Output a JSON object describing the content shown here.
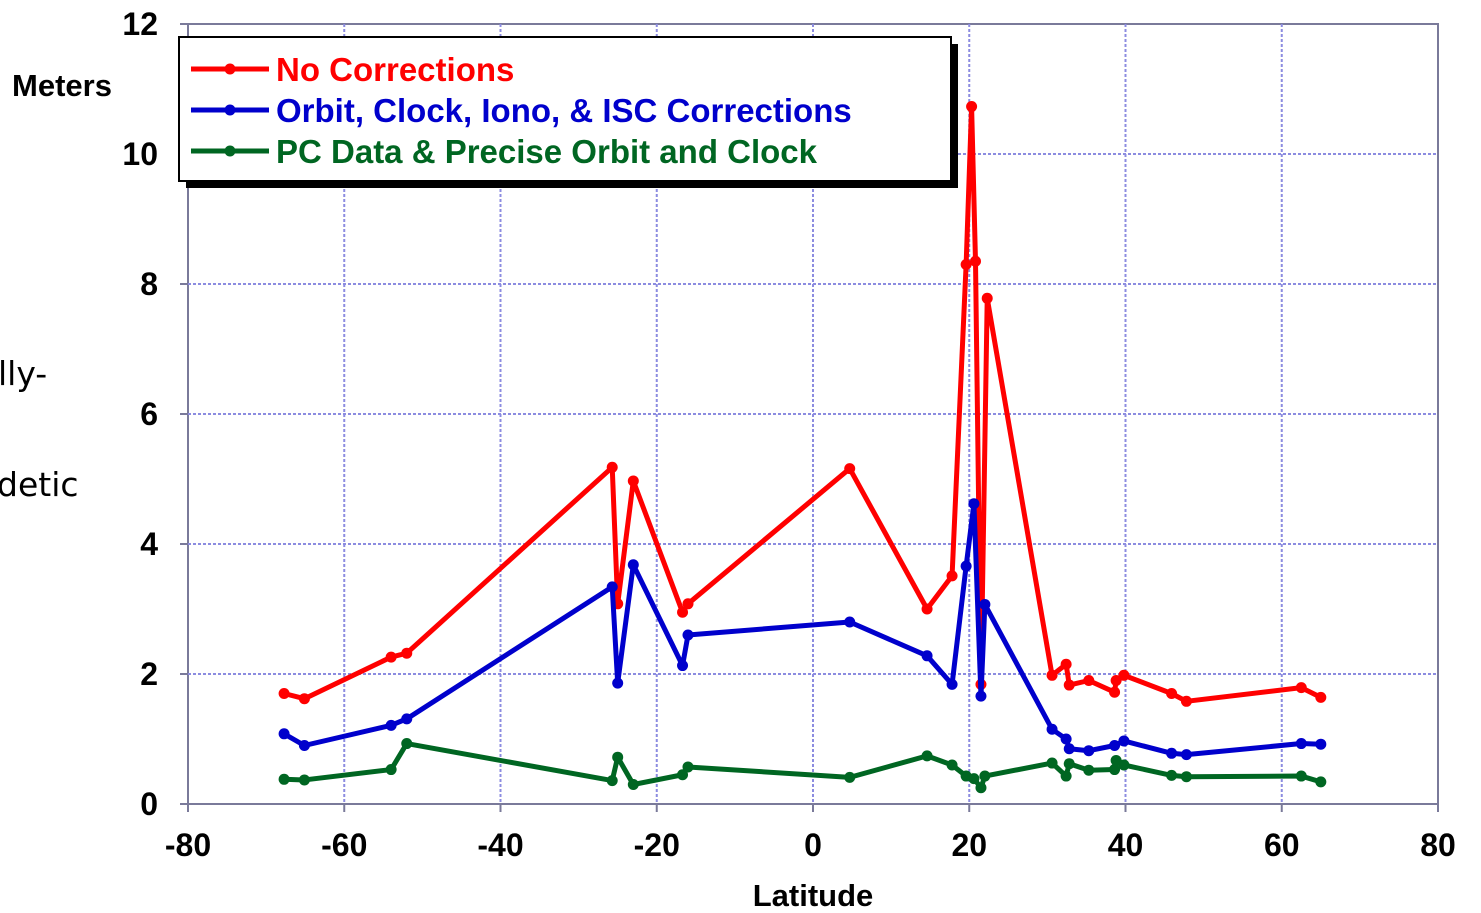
{
  "chart_data": {
    "type": "line",
    "xlabel": "Latitude",
    "ylabel": "Meters",
    "xlim": [
      -80,
      80
    ],
    "ylim": [
      0,
      12
    ],
    "xticks": [
      -80,
      -60,
      -40,
      -20,
      0,
      20,
      40,
      60,
      80
    ],
    "yticks": [
      0,
      2,
      4,
      6,
      8,
      10,
      12
    ],
    "grid": true,
    "legend_position": "top-left",
    "side_text": [
      "lly-",
      "detic"
    ],
    "series": [
      {
        "name": "No Corrections",
        "color": "#ff0000",
        "x": [
          -67.7,
          -65.1,
          -54.0,
          -52.0,
          -25.7,
          -25.0,
          -23.0,
          -16.7,
          -16.0,
          4.7,
          14.6,
          17.8,
          19.6,
          20.3,
          20.8,
          21.5,
          22.3,
          30.6,
          32.4,
          32.8,
          35.3,
          38.6,
          38.8,
          39.8,
          45.9,
          47.8,
          62.5,
          65.0
        ],
        "y": [
          1.7,
          1.62,
          2.26,
          2.32,
          5.18,
          3.08,
          4.97,
          2.95,
          3.08,
          5.16,
          3.0,
          3.51,
          8.3,
          10.73,
          8.35,
          1.84,
          7.78,
          1.98,
          2.15,
          1.83,
          1.9,
          1.72,
          1.9,
          1.98,
          1.7,
          1.58,
          1.79,
          1.64
        ]
      },
      {
        "name": "Orbit, Clock, Iono, & ISC Corrections",
        "color": "#0000cc",
        "x": [
          -67.7,
          -65.1,
          -54.0,
          -52.0,
          -25.7,
          -25.0,
          -23.0,
          -16.7,
          -16.0,
          4.7,
          14.6,
          17.8,
          19.6,
          20.6,
          21.5,
          22.0,
          30.6,
          32.4,
          32.8,
          35.3,
          38.6,
          39.8,
          45.9,
          47.8,
          62.5,
          65.0
        ],
        "y": [
          1.08,
          0.9,
          1.21,
          1.31,
          3.34,
          1.86,
          3.68,
          2.13,
          2.6,
          2.8,
          2.28,
          1.84,
          3.66,
          4.62,
          1.66,
          3.07,
          1.15,
          1.0,
          0.85,
          0.82,
          0.9,
          0.97,
          0.78,
          0.76,
          0.93,
          0.92
        ]
      },
      {
        "name": "PC Data & Precise Orbit and Clock",
        "color": "#006622",
        "x": [
          -67.7,
          -65.1,
          -54.0,
          -52.0,
          -25.7,
          -25.0,
          -23.0,
          -16.7,
          -16.0,
          4.7,
          14.6,
          17.8,
          19.6,
          20.6,
          21.5,
          22.0,
          30.6,
          32.4,
          32.8,
          35.3,
          38.6,
          38.8,
          39.8,
          45.9,
          47.8,
          62.5,
          65.0
        ],
        "y": [
          0.38,
          0.37,
          0.53,
          0.93,
          0.36,
          0.72,
          0.3,
          0.45,
          0.57,
          0.41,
          0.74,
          0.6,
          0.43,
          0.39,
          0.25,
          0.43,
          0.63,
          0.43,
          0.62,
          0.52,
          0.53,
          0.67,
          0.6,
          0.44,
          0.42,
          0.43,
          0.34
        ]
      }
    ]
  }
}
